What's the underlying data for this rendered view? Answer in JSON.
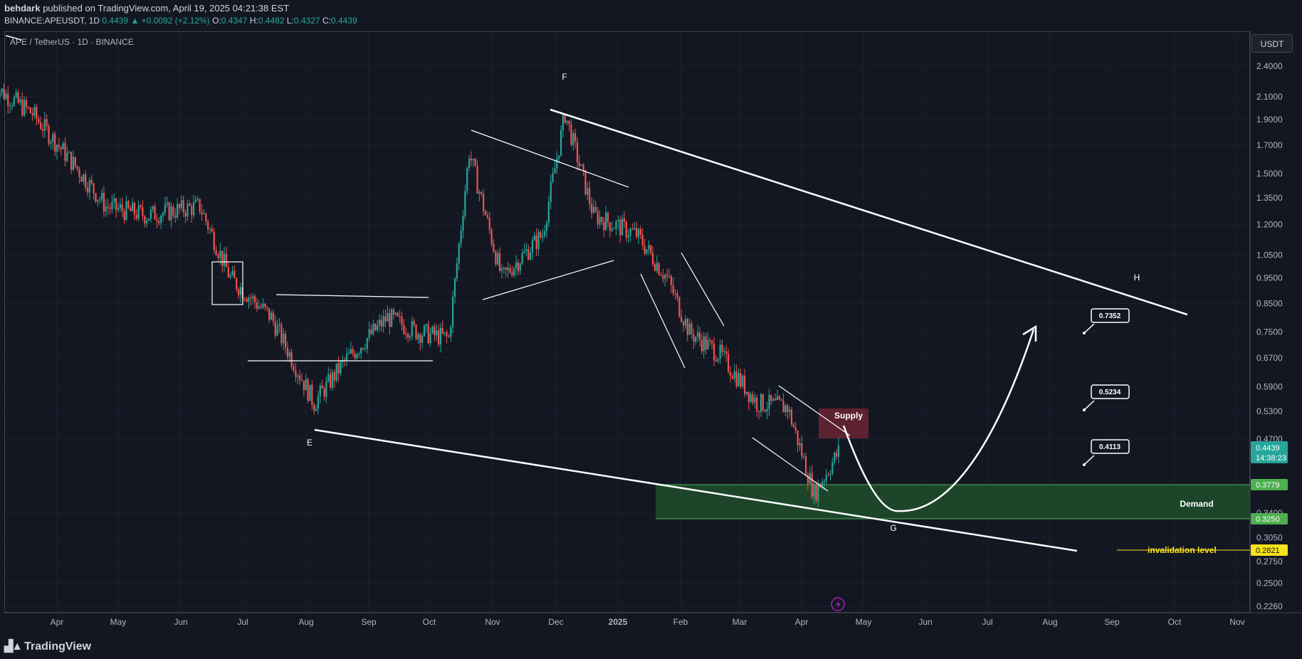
{
  "header": {
    "author": "behdark",
    "published_text": "published on TradingView.com, April 19, 2025 04:21:38 EST",
    "symbol_line": "BINANCE:APEUSDT, 1D",
    "last": "0.4439",
    "change": "+0.0092 (+2.12%)",
    "o_label": "O:",
    "o": "0.4347",
    "h_label": "H:",
    "h": "0.4482",
    "l_label": "L:",
    "l": "0.4327",
    "c_label": "C:",
    "c": "0.4439"
  },
  "chart_title": "APE / TetherUS · 1D · BINANCE",
  "currency_button": "USDT",
  "price_axis": [
    "2.4000",
    "2.1000",
    "1.9000",
    "1.7000",
    "1.5000",
    "1.3500",
    "1.2000",
    "1.0500",
    "0.9500",
    "0.8500",
    "0.7500",
    "0.6700",
    "0.5900",
    "0.5300",
    "0.4700",
    "0.3400",
    "0.3050",
    "0.2750",
    "0.2500",
    "0.2260"
  ],
  "time_axis": [
    "Apr",
    "May",
    "Jun",
    "Jul",
    "Aug",
    "Sep",
    "Oct",
    "Nov",
    "Dec",
    "2025",
    "Feb",
    "Mar",
    "Apr",
    "May",
    "Jun",
    "Jul",
    "Aug",
    "Sep",
    "Oct",
    "Nov"
  ],
  "price_tags": {
    "current": "0.4439",
    "countdown": "14:38:23",
    "demand_top": "0.3779",
    "demand_bottom": "0.3250",
    "invalidation": "0.2821"
  },
  "annotations": {
    "wave_e": "E",
    "wave_f": "F",
    "wave_g": "G",
    "wave_h": "H",
    "supply": "Supply",
    "demand": "Demand",
    "invalidation": "invalidation level",
    "target_1": "0.7352",
    "target_2": "0.5234",
    "target_3": "0.4113"
  },
  "colors": {
    "background": "#131722",
    "up": "#26a69a",
    "down": "#ef5350",
    "demand_zone": "#1e4d2b",
    "supply_zone": "#6b2433",
    "invalidation": "#f7e11b"
  },
  "footer": {
    "brand": "TradingView"
  },
  "icons": {
    "lightning": "lightning-icon"
  },
  "chart_data": {
    "type": "candlestick",
    "title": "APE / TetherUS · 1D · BINANCE",
    "x_labels": [
      "Apr",
      "May",
      "Jun",
      "Jul",
      "Aug",
      "Sep",
      "Oct",
      "Nov",
      "Dec",
      "2025",
      "Feb",
      "Mar",
      "Apr",
      "May",
      "Jun",
      "Jul",
      "Aug",
      "Sep",
      "Oct",
      "Nov"
    ],
    "y_scale": "log",
    "y_range": [
      0.215,
      2.6
    ],
    "price_path": {
      "x": [
        "2024-03-01",
        "2024-03-20",
        "2024-04-10",
        "2024-04-25",
        "2024-05-15",
        "2024-06-10",
        "2024-06-25",
        "2024-07-15",
        "2024-08-05",
        "2024-08-20",
        "2024-09-10",
        "2024-09-25",
        "2024-10-10",
        "2024-10-20",
        "2024-11-05",
        "2024-11-25",
        "2024-12-06",
        "2024-12-20",
        "2025-01-10",
        "2025-01-25",
        "2025-02-05",
        "2025-02-20",
        "2025-03-10",
        "2025-03-25",
        "2025-04-07",
        "2025-04-19"
      ],
      "y": [
        2.2,
        1.95,
        1.55,
        1.3,
        1.25,
        1.3,
        0.95,
        0.8,
        0.55,
        0.66,
        0.8,
        0.75,
        0.73,
        1.65,
        0.95,
        1.15,
        1.95,
        1.25,
        1.15,
        0.95,
        0.75,
        0.68,
        0.55,
        0.54,
        0.37,
        0.4439
      ]
    },
    "zones": [
      {
        "name": "Demand",
        "from": 0.325,
        "to": 0.3779
      },
      {
        "name": "Supply",
        "from": 0.47,
        "to": 0.53
      }
    ],
    "levels": [
      {
        "name": "invalidation level",
        "value": 0.2821
      }
    ],
    "targets": [
      0.7352,
      0.5234,
      0.4113
    ]
  }
}
